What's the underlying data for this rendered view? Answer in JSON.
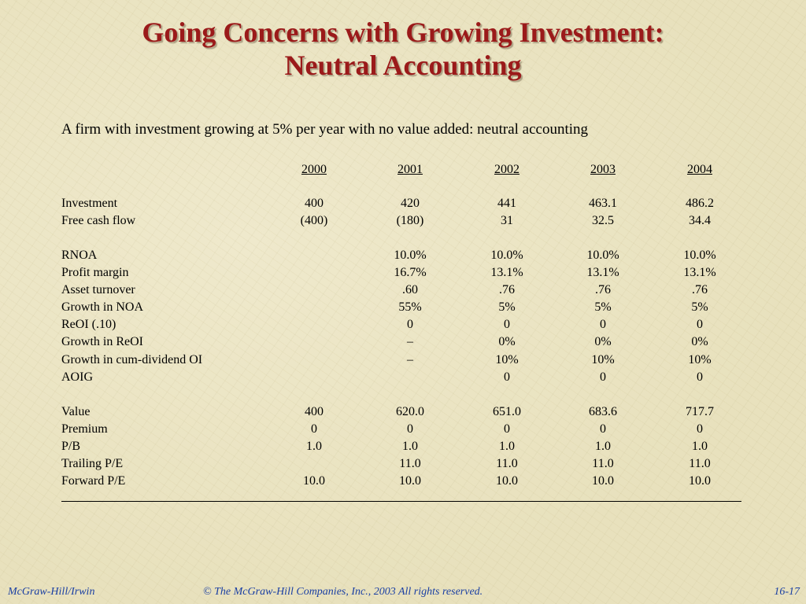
{
  "title": {
    "line1": "Going Concerns with Growing Investment:",
    "line2": "Neutral Accounting"
  },
  "subtitle": "A firm with investment growing at 5% per year with no value added: neutral accounting",
  "table": {
    "years": [
      "2000",
      "2001",
      "2002",
      "2003",
      "2004"
    ],
    "rows": [
      {
        "label": "Investment",
        "values": [
          "400",
          "420",
          "441",
          "463.1",
          "486.2"
        ]
      },
      {
        "label": "Free cash flow",
        "values": [
          "(400)",
          "(180)",
          "31",
          "32.5",
          "34.4"
        ]
      },
      {
        "label": "RNOA",
        "values": [
          "",
          "10.0%",
          "10.0%",
          "10.0%",
          "10.0%"
        ]
      },
      {
        "label": "Profit margin",
        "values": [
          "",
          "16.7%",
          "13.1%",
          "13.1%",
          "13.1%"
        ]
      },
      {
        "label": "Asset turnover",
        "values": [
          "",
          ".60",
          ".76",
          ".76",
          ".76"
        ]
      },
      {
        "label": "Growth in NOA",
        "values": [
          "",
          "55%",
          "5%",
          "5%",
          "5%"
        ]
      },
      {
        "label": "ReOI (.10)",
        "values": [
          "",
          "0",
          "0",
          "0",
          "0"
        ]
      },
      {
        "label": "Growth in ReOI",
        "values": [
          "",
          "–",
          "0%",
          "0%",
          "0%"
        ]
      },
      {
        "label": "Growth in cum-dividend OI",
        "values": [
          "",
          "–",
          "10%",
          "10%",
          "10%"
        ]
      },
      {
        "label": "AOIG",
        "values": [
          "",
          "",
          "0",
          "0",
          "0"
        ]
      },
      {
        "label": "Value",
        "values": [
          "400",
          "620.0",
          "651.0",
          "683.6",
          "717.7"
        ]
      },
      {
        "label": "Premium",
        "values": [
          "0",
          "0",
          "0",
          "0",
          "0"
        ]
      },
      {
        "label": "P/B",
        "values": [
          "1.0",
          "1.0",
          "1.0",
          "1.0",
          "1.0"
        ]
      },
      {
        "label": "Trailing P/E",
        "values": [
          "",
          "11.0",
          "11.0",
          "11.0",
          "11.0"
        ]
      },
      {
        "label": "Forward P/E",
        "values": [
          "10.0",
          "10.0",
          "10.0",
          "10.0",
          "10.0"
        ]
      }
    ]
  },
  "footer": {
    "publisher": "McGraw-Hill/Irwin",
    "copyright": "© The McGraw-Hill Companies, Inc., 2003  All rights reserved.",
    "slide_number": "16-17"
  }
}
